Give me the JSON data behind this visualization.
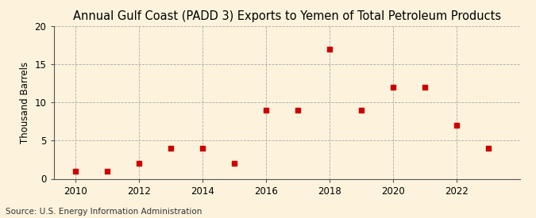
{
  "title": "Annual Gulf Coast (PADD 3) Exports to Yemen of Total Petroleum Products",
  "ylabel": "Thousand Barrels",
  "source": "Source: U.S. Energy Information Administration",
  "years": [
    2010,
    2011,
    2012,
    2013,
    2014,
    2015,
    2016,
    2017,
    2018,
    2019,
    2020,
    2021,
    2022,
    2023
  ],
  "values": [
    1,
    1,
    2,
    4,
    4,
    2,
    9,
    9,
    17,
    9,
    12,
    12,
    7,
    4
  ],
  "marker_color": "#cc0000",
  "marker": "s",
  "marker_size": 4,
  "background_color": "#fdf3dc",
  "grid_color": "#aaaaaa",
  "ylim": [
    0,
    20
  ],
  "yticks": [
    0,
    5,
    10,
    15,
    20
  ],
  "xticks": [
    2010,
    2012,
    2014,
    2016,
    2018,
    2020,
    2022
  ],
  "title_fontsize": 10.5,
  "ylabel_fontsize": 8.5,
  "tick_fontsize": 8.5,
  "source_fontsize": 7.5
}
